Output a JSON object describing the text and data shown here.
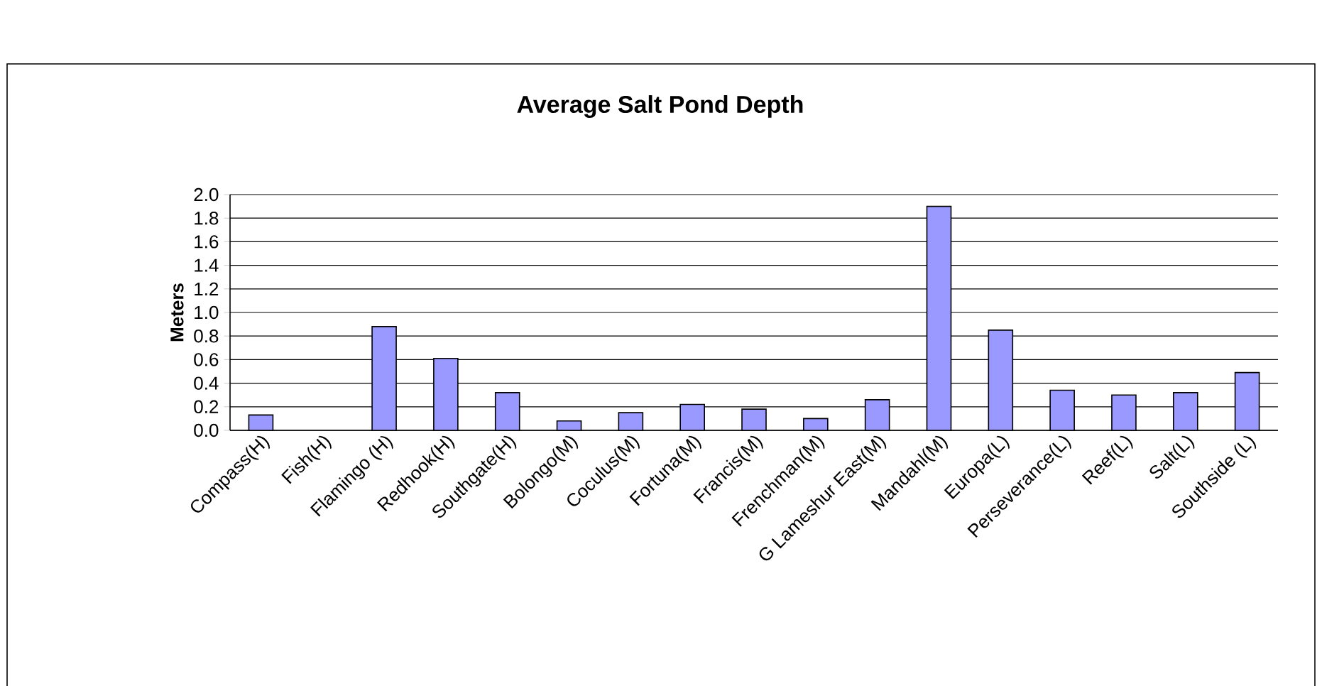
{
  "chart_data": {
    "type": "bar",
    "title": "Average Salt Pond Depth",
    "ylabel": "Meters",
    "categories": [
      "Compass(H)",
      "Fish(H)",
      "Flamingo (H)",
      "Redhook(H)",
      "Southgate(H)",
      "Bolongo(M)",
      "Coculus(M)",
      "Fortuna(M)",
      "Francis(M)",
      "Frenchman(M)",
      "G Lameshur East(M)",
      "Mandahl(M)",
      "Europa(L)",
      "Perseverance(L)",
      "Reef(L)",
      "Salt(L)",
      "Southside (L)"
    ],
    "values": [
      0.13,
      null,
      0.88,
      0.61,
      0.32,
      0.08,
      0.15,
      0.22,
      0.18,
      0.1,
      0.26,
      1.9,
      0.85,
      0.34,
      0.3,
      0.32,
      0.49
    ],
    "color": "#9999ff",
    "ylim": [
      0,
      2.0
    ],
    "yticks": [
      {
        "value": 0,
        "label": "0.0"
      },
      {
        "value": 0.2,
        "label": "0.2"
      },
      {
        "value": 0.4,
        "label": "0.4"
      },
      {
        "value": 0.6,
        "label": "0.6"
      },
      {
        "value": 0.8,
        "label": "0.8"
      },
      {
        "value": 1.0,
        "label": "1.0"
      },
      {
        "value": 1.2,
        "label": "1.2"
      },
      {
        "value": 1.4,
        "label": "1.4"
      },
      {
        "value": 1.6,
        "label": "1.6"
      },
      {
        "value": 1.8,
        "label": "1.8"
      },
      {
        "value": 2.0,
        "label": "2.0"
      }
    ],
    "grid": "y"
  }
}
